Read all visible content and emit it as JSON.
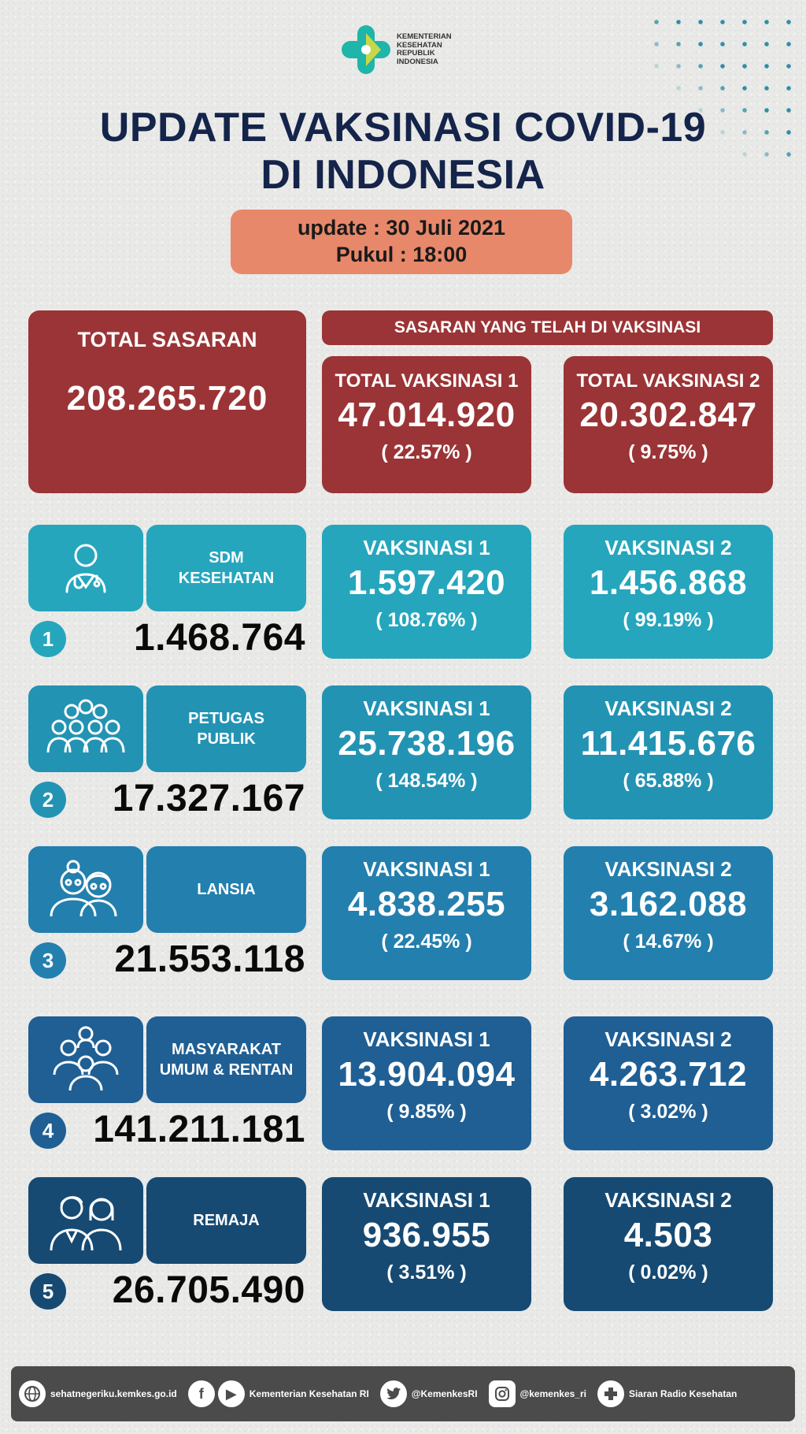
{
  "logo": {
    "line1": "KEMENTERIAN",
    "line2": "KESEHATAN",
    "line3": "REPUBLIK",
    "line4": "INDONESIA"
  },
  "title": {
    "line1": "UPDATE VAKSINASI COVID-19",
    "line2": "DI INDONESIA"
  },
  "update": {
    "date": "update : 30 Juli 2021",
    "time": "Pukul : 18:00"
  },
  "total_sasaran": {
    "label": "TOTAL SASARAN",
    "value": "208.265.720"
  },
  "sasaran_header": "SASARAN YANG TELAH DI VAKSINASI",
  "total_v1": {
    "label": "TOTAL VAKSINASI 1",
    "value": "47.014.920",
    "pct": "( 22.57% )"
  },
  "total_v2": {
    "label": "TOTAL VAKSINASI 2",
    "value": "20.302.847",
    "pct": "( 9.75% )"
  },
  "groups": [
    {
      "no": "1",
      "name1": "SDM",
      "name2": "KESEHATAN",
      "target": "1.468.764",
      "icon": "doctor-icon",
      "v1_label": "VAKSINASI 1",
      "v1": "1.597.420",
      "v1_pct": "( 108.76% )",
      "v2_label": "VAKSINASI 2",
      "v2": "1.456.868",
      "v2_pct": "( 99.19% )",
      "color": "#25a6bd"
    },
    {
      "no": "2",
      "name1": "PETUGAS",
      "name2": "PUBLIK",
      "target": "17.327.167",
      "icon": "crowd-icon",
      "v1_label": "VAKSINASI 1",
      "v1": "25.738.196",
      "v1_pct": "( 148.54% )",
      "v2_label": "VAKSINASI 2",
      "v2": "11.415.676",
      "v2_pct": "( 65.88% )",
      "color": "#2393b3"
    },
    {
      "no": "3",
      "name1": "LANSIA",
      "name2": "",
      "target": "21.553.118",
      "icon": "elderly-icon",
      "v1_label": "VAKSINASI 1",
      "v1": "4.838.255",
      "v1_pct": "( 22.45% )",
      "v2_label": "VAKSINASI 2",
      "v2": "3.162.088",
      "v2_pct": "( 14.67% )",
      "color": "#237fae"
    },
    {
      "no": "4",
      "name1": "MASYARAKAT",
      "name2": "UMUM & RENTAN",
      "target": "141.211.181",
      "icon": "community-icon",
      "v1_label": "VAKSINASI 1",
      "v1": "13.904.094",
      "v1_pct": "( 9.85% )",
      "v2_label": "VAKSINASI 2",
      "v2": "4.263.712",
      "v2_pct": "( 3.02% )",
      "color": "#1f5f94"
    },
    {
      "no": "5",
      "name1": "REMAJA",
      "name2": "",
      "target": "26.705.490",
      "icon": "teenagers-icon",
      "v1_label": "VAKSINASI 1",
      "v1": "936.955",
      "v1_pct": "( 3.51% )",
      "v2_label": "VAKSINASI 2",
      "v2": "4.503",
      "v2_pct": "( 0.02% )",
      "color": "#164a73"
    }
  ],
  "footer": {
    "website": "sehatnegeriku.kemkes.go.id",
    "facebook_youtube": "Kementerian Kesehatan RI",
    "twitter": "@KemenkesRI",
    "instagram": "@kemenkes_ri",
    "radio": "Siaran Radio Kesehatan"
  }
}
